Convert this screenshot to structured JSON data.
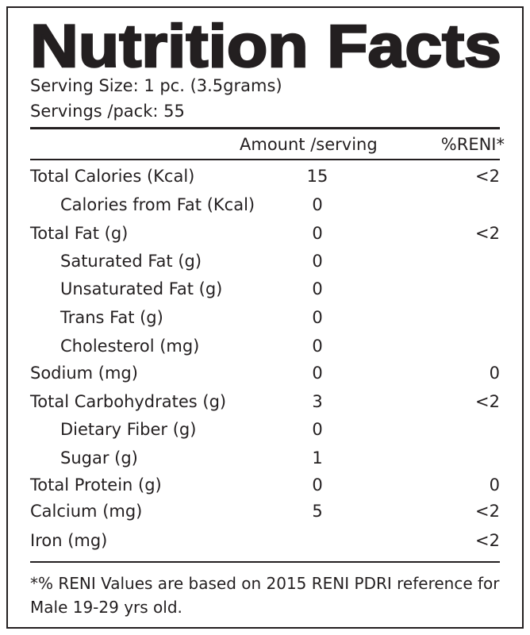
{
  "header": {
    "title": "Nutrition Facts",
    "serving_size": "Serving Size:  1 pc. (3.5grams)",
    "servings_per_pack": "Servings /pack:  55"
  },
  "table": {
    "columns": [
      "Amount /serving",
      "%RENI*"
    ],
    "rows": [
      {
        "label": "Total Calories (Kcal)",
        "amount": 15,
        "reni": "<2"
      },
      {
        "label": "Calories from Fat (Kcal)",
        "indent": true,
        "amount": 0
      },
      {
        "label": "Total Fat (g)",
        "amount": 0,
        "reni": "<2"
      },
      {
        "label": "Saturated Fat (g)",
        "indent": true,
        "amount": 0
      },
      {
        "label": "Unsaturated Fat (g)",
        "indent": true,
        "amount": 0
      },
      {
        "label": "Trans Fat (g)",
        "indent": true,
        "amount": 0
      },
      {
        "label": "Cholesterol (mg)",
        "indent": true,
        "amount": 0
      },
      {
        "label": "Sodium (mg)",
        "amount": 0,
        "reni": 0
      },
      {
        "label": "Total Carbohydrates (g)",
        "amount": 3,
        "reni": "<2"
      },
      {
        "label": "Dietary Fiber (g)",
        "indent": true,
        "amount": 0
      },
      {
        "label": "Sugar (g)",
        "indent": true,
        "amount": 1
      },
      {
        "label": "Total Protein (g)",
        "amount": 0,
        "reni": 0
      },
      {
        "label": "Calcium (mg)",
        "amount": 5,
        "reni": "<2"
      },
      {
        "label": "Iron (mg)",
        "reni": "<2"
      }
    ]
  },
  "footnote": "*% RENI Values are based on 2015 RENI PDRI reference for Male 19-29 yrs old."
}
